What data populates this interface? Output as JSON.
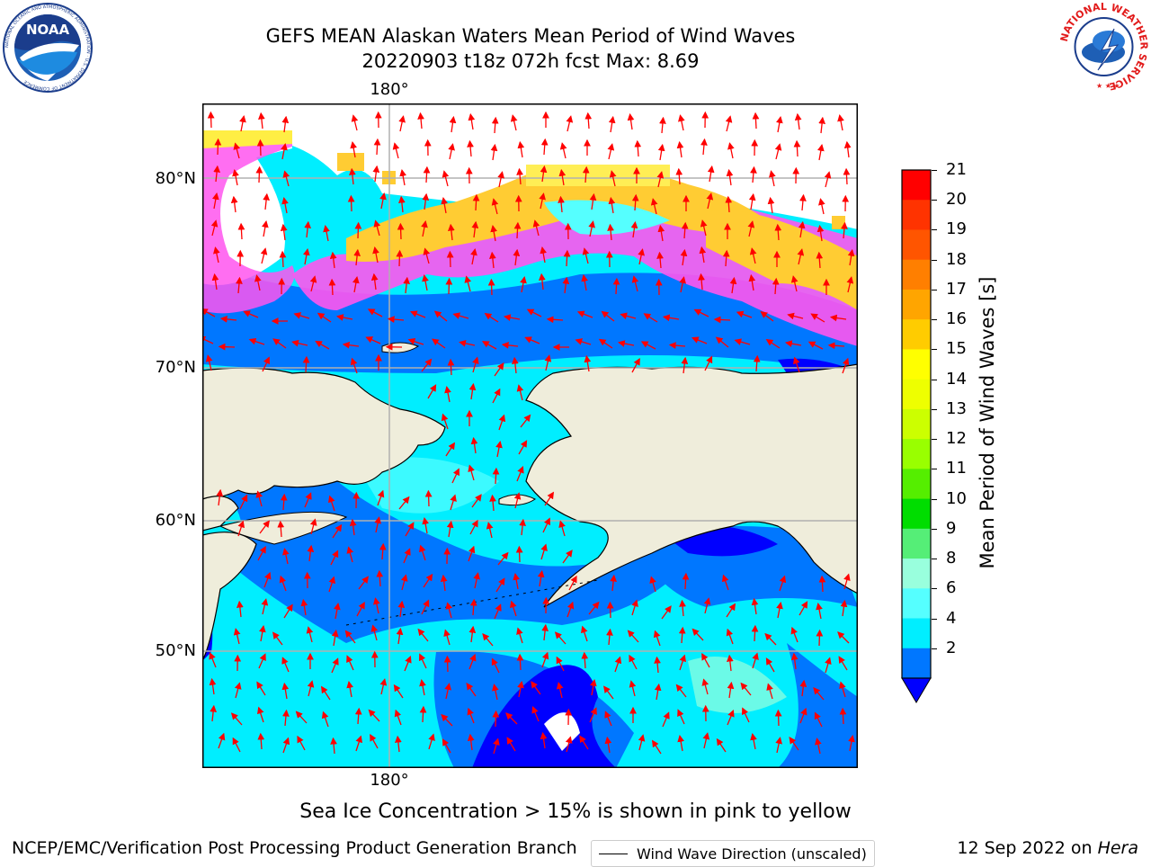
{
  "header": {
    "title_line1": "GEFS MEAN Alaskan Waters Mean Period of Wind Waves",
    "title_line2": "20220903 t18z 072h fcst   Max: 8.69"
  },
  "logos": {
    "noaa": {
      "text": "NOAA",
      "ring_text": "NATIONAL OCEANIC AND ATMOSPHERIC ADMINISTRATION · U.S. DEPARTMENT OF COMMERCE"
    },
    "nws": {
      "ring_text": "NATIONAL WEATHER SERVICE"
    }
  },
  "map": {
    "lat_labels": [
      "80°N",
      "70°N",
      "60°N",
      "50°N"
    ],
    "lon_label_top": "180°",
    "lon_label_bottom": "180°",
    "legend_label": "Wind Wave Direction (unscaled)",
    "land_color": "#efeddb",
    "arrow_color": "#ff0000"
  },
  "colorbar": {
    "title": "Mean Period of Wind Waves [s]",
    "tick_labels": [
      "21",
      "20",
      "19",
      "18",
      "17",
      "16",
      "15",
      "14",
      "13",
      "12",
      "11",
      "10",
      "9",
      "8",
      "6",
      "4",
      "2"
    ],
    "colors": [
      "#ff0000",
      "#ff3300",
      "#ff5500",
      "#ff7f00",
      "#ffa500",
      "#ffcc00",
      "#ffff00",
      "#eeff00",
      "#ccff00",
      "#99ff00",
      "#55ee00",
      "#00dd00",
      "#55ee77",
      "#99ffdd",
      "#55ffff",
      "#00eeff",
      "#0077ff"
    ],
    "extend_color": "#0000ff"
  },
  "notes": {
    "ice": "Sea Ice Concentration > 15% is shown in pink to yellow"
  },
  "footer": {
    "left": "NCEP/EMC/Verification Post Processing Product Generation Branch",
    "right_prefix": "12 Sep 2022 on ",
    "right_host": "Hera"
  }
}
